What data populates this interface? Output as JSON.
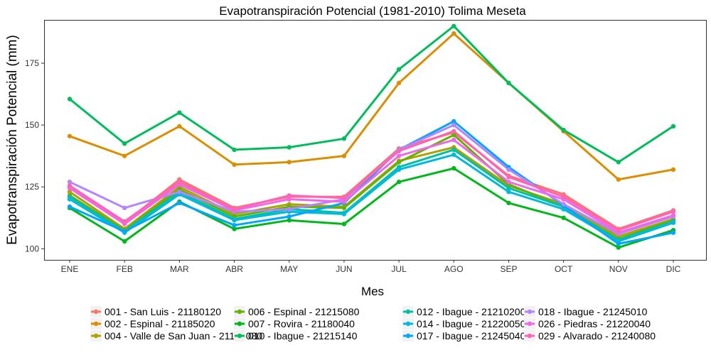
{
  "chart_data": {
    "type": "line",
    "title": "Evapotranspiración Potencial (1981-2010)  Tolima Meseta",
    "xlabel": "Mes",
    "ylabel": "Evapotranspiración Potencial  (mm)",
    "categories": [
      "ENE",
      "FEB",
      "MAR",
      "ABR",
      "MAY",
      "JUN",
      "JUL",
      "AGO",
      "SEP",
      "OCT",
      "NOV",
      "DIC"
    ],
    "yticks": [
      100,
      125,
      150,
      175
    ],
    "ylim": [
      95.5,
      192.5
    ],
    "grid": false,
    "legend_position": "bottom",
    "series": [
      {
        "name": "001 - San Luis - 21180120",
        "color": "#F8766D",
        "values": [
          125.0,
          110.5,
          128.0,
          116.5,
          121.0,
          121.0,
          140.5,
          147.0,
          129.5,
          122.0,
          108.0,
          115.5
        ]
      },
      {
        "name": "002 - Espinal - 21185020",
        "color": "#DB8E00",
        "values": [
          145.5,
          137.5,
          149.5,
          134.0,
          135.0,
          137.5,
          167.0,
          187.0,
          167.0,
          147.5,
          128.0,
          132.0
        ]
      },
      {
        "name": "004 - Valle de San Juan - 21185080",
        "color": "#AEA200",
        "values": [
          123.0,
          108.0,
          125.0,
          114.0,
          118.0,
          117.0,
          135.5,
          141.0,
          125.5,
          118.0,
          105.0,
          112.0
        ]
      },
      {
        "name": "006 - Espinal - 21215080",
        "color": "#64B200",
        "values": [
          121.5,
          107.5,
          124.0,
          113.0,
          117.0,
          116.5,
          135.0,
          146.0,
          126.0,
          117.0,
          104.0,
          111.5
        ]
      },
      {
        "name": "007 - Rovira - 21180040",
        "color": "#00B81B",
        "values": [
          116.5,
          103.0,
          119.0,
          108.0,
          111.5,
          110.0,
          127.0,
          132.5,
          118.5,
          112.5,
          100.5,
          107.5
        ]
      },
      {
        "name": "010 - Ibague - 21215140",
        "color": "#00BD5C",
        "values": [
          160.5,
          142.5,
          155.0,
          140.0,
          141.0,
          144.5,
          172.5,
          190.0,
          167.0,
          148.0,
          135.0,
          149.5
        ]
      },
      {
        "name": "012 - Ibague - 21210200",
        "color": "#00C1A7",
        "values": [
          121.0,
          107.0,
          123.0,
          112.0,
          116.0,
          114.5,
          133.0,
          140.0,
          124.5,
          117.0,
          103.5,
          111.0
        ]
      },
      {
        "name": "014 - Ibague - 21220050",
        "color": "#00BADE",
        "values": [
          120.0,
          106.5,
          122.0,
          111.5,
          115.0,
          114.0,
          132.0,
          138.0,
          123.0,
          116.0,
          103.0,
          110.5
        ]
      },
      {
        "name": "017 - Ibague - 21245040",
        "color": "#00A6FF",
        "values": [
          117.0,
          107.0,
          118.5,
          109.5,
          113.0,
          118.5,
          140.0,
          151.5,
          133.0,
          117.5,
          102.0,
          106.5
        ]
      },
      {
        "name": "018 - Ibague - 21245010",
        "color": "#B385FF",
        "values": [
          127.0,
          116.5,
          123.0,
          115.0,
          116.0,
          120.0,
          140.0,
          150.0,
          132.0,
          118.0,
          106.0,
          113.0
        ]
      },
      {
        "name": "026 - Piedras - 21220040",
        "color": "#EF67EB",
        "values": [
          124.5,
          110.0,
          126.0,
          115.5,
          120.0,
          119.0,
          137.5,
          144.0,
          127.0,
          120.0,
          106.5,
          113.5
        ]
      },
      {
        "name": "029 - Alvarado - 21240080",
        "color": "#FF63B6",
        "values": [
          125.5,
          111.0,
          127.0,
          116.0,
          121.5,
          120.5,
          139.5,
          147.5,
          129.0,
          121.0,
          107.5,
          115.0
        ]
      }
    ]
  }
}
